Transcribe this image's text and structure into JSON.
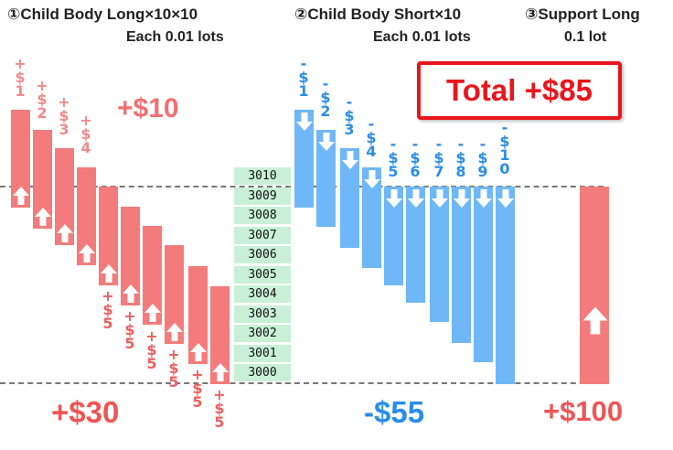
{
  "headers": {
    "child_long_title": "①Child Body Long×10×10",
    "child_long_sub": "Each 0.01 lots",
    "child_short_title": "②Child Body Short×10",
    "child_short_sub": "Each 0.01 lots",
    "support_long_title": "③Support Long",
    "support_long_sub": "0.1 lot"
  },
  "total_label": "Total +$85",
  "long_top_profit": "+$10",
  "long_result": "+$30",
  "short_result": "-$55",
  "support_result": "+$100",
  "prices": [
    "3010",
    "3009",
    "3008",
    "3007",
    "3006",
    "3005",
    "3004",
    "3003",
    "3002",
    "3001",
    "3000"
  ],
  "long_top_labels": [
    "+\n$\n1",
    "+\n$\n2",
    "+\n$\n3",
    "+\n$\n4"
  ],
  "long_bottom_labels": [
    "+\n$\n5",
    "+\n$\n5",
    "+\n$\n5",
    "+\n$\n5",
    "+\n$\n5",
    "+\n$\n5"
  ],
  "short_labels": [
    "-\n$\n1",
    "-\n$\n2",
    "-\n$\n3",
    "-\n$\n4",
    "-\n$\n5",
    "-\n$\n6",
    "-\n$\n7",
    "-\n$\n8",
    "-\n$\n9",
    "-\n$\n1\n0"
  ],
  "colors": {
    "long": "#f47b7b",
    "short": "#6fb7f7",
    "total": "#e8161c"
  }
}
